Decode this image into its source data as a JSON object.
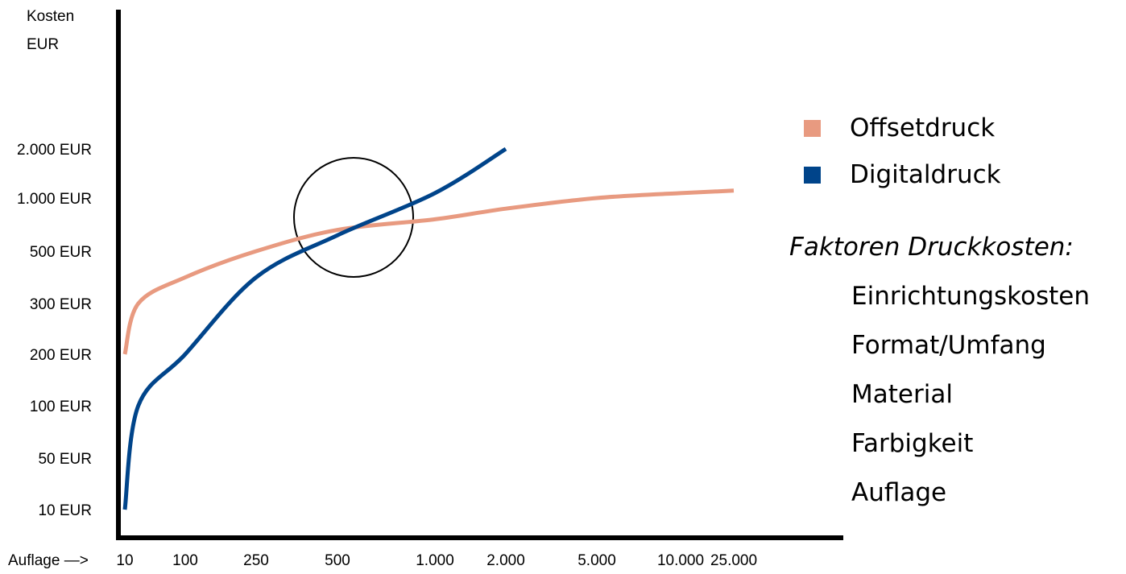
{
  "chart_data": {
    "type": "line",
    "ylabel_lines": [
      "Kosten",
      "EUR"
    ],
    "xlabel": "Auflage —>",
    "y_ticks": [
      "10 EUR",
      "50 EUR",
      "100 EUR",
      "200 EUR",
      "300 EUR",
      "500 EUR",
      "1.000 EUR",
      "2.000 EUR"
    ],
    "x_ticks": [
      "10",
      "100",
      "250",
      "500",
      "1.000",
      "2.000",
      "5.000",
      "10.000",
      "25.000"
    ],
    "series": [
      {
        "name": "Offsetdruck",
        "color": "#E89A80",
        "points": [
          [
            10,
            200
          ],
          [
            30,
            300
          ],
          [
            100,
            400
          ],
          [
            250,
            500
          ],
          [
            500,
            700
          ],
          [
            1000,
            800
          ],
          [
            2000,
            900
          ],
          [
            5000,
            1000
          ],
          [
            10000,
            1100
          ],
          [
            25000,
            1150
          ]
        ]
      },
      {
        "name": "Digitaldruck",
        "color": "#00448A",
        "points": [
          [
            10,
            10
          ],
          [
            30,
            100
          ],
          [
            100,
            200
          ],
          [
            250,
            400
          ],
          [
            500,
            650
          ],
          [
            1000,
            1100
          ],
          [
            2000,
            2000
          ]
        ]
      }
    ],
    "highlight": {
      "shape": "circle",
      "x": 500,
      "y": 700
    }
  },
  "legend_items": [
    {
      "label": "Offsetdruck",
      "color": "#E89A80"
    },
    {
      "label": "Digitaldruck",
      "color": "#00448A"
    }
  ],
  "factors": {
    "title": "Faktoren Druckkosten:",
    "items": [
      "Einrichtungskosten",
      "Format/Umfang",
      "Material",
      "Farbigkeit",
      "Auflage"
    ]
  }
}
